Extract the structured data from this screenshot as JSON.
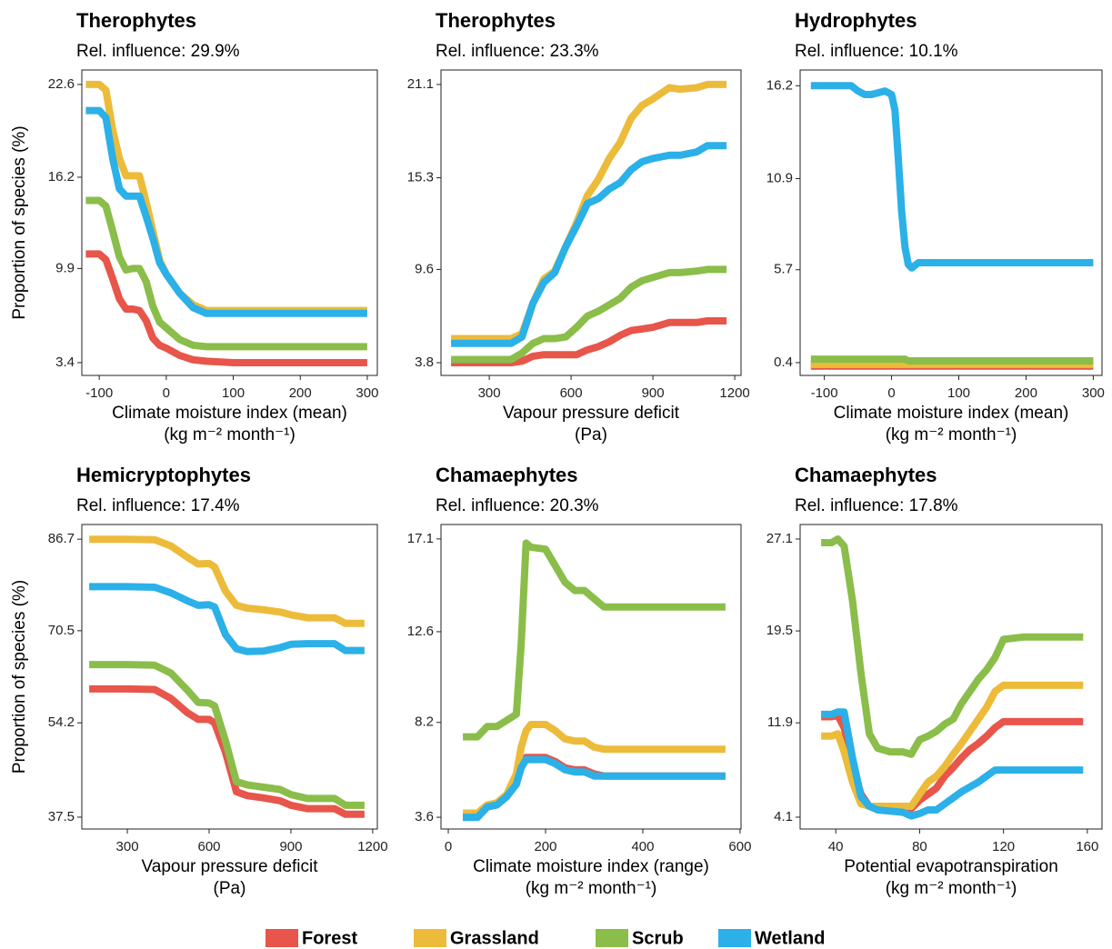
{
  "chart_data": [
    {
      "type": "line",
      "title": "Therophytes",
      "subtitle": "Rel. influence: 29.9%",
      "ylabel": "Proportion of species (%)",
      "xlabel": [
        "Climate moisture index (mean)",
        "(kg m⁻² month⁻¹)"
      ],
      "xlim": [
        -126,
        315
      ],
      "xticks": [
        -100,
        0,
        100,
        200,
        300
      ],
      "ylim": [
        2.52,
        23.6
      ],
      "yticks": [
        3.4,
        9.9,
        16.2,
        22.6
      ],
      "x": [
        -120,
        -100,
        -90,
        -80,
        -70,
        -60,
        -50,
        -40,
        -30,
        -20,
        -10,
        0,
        20,
        40,
        60,
        100,
        200,
        300
      ],
      "series": [
        {
          "name": "Forest",
          "color": "#e8554a",
          "values": [
            10.9,
            10.9,
            10.5,
            9.2,
            7.8,
            7.1,
            7.1,
            7.0,
            6.3,
            5.1,
            4.6,
            4.4,
            3.9,
            3.6,
            3.5,
            3.4,
            3.4,
            3.4
          ]
        },
        {
          "name": "Grassland",
          "color": "#ecbb3a",
          "values": [
            22.6,
            22.6,
            22.2,
            19.5,
            17.5,
            16.3,
            16.3,
            16.3,
            14.5,
            12.5,
            10.5,
            9.5,
            8.2,
            7.4,
            7.0,
            7.0,
            7.0,
            7.0
          ]
        },
        {
          "name": "Scrub",
          "color": "#8bbd4a",
          "values": [
            14.6,
            14.6,
            14.2,
            12.5,
            10.7,
            9.8,
            9.9,
            9.9,
            9.0,
            7.3,
            6.2,
            5.8,
            5.0,
            4.6,
            4.5,
            4.5,
            4.5,
            4.5
          ]
        },
        {
          "name": "Wetland",
          "color": "#2bb0e8",
          "values": [
            20.8,
            20.8,
            20.3,
            17.5,
            15.4,
            14.9,
            14.9,
            14.9,
            13.5,
            12.0,
            10.3,
            9.5,
            8.2,
            7.2,
            6.8,
            6.8,
            6.8,
            6.8
          ]
        }
      ]
    },
    {
      "type": "line",
      "title": "Therophytes",
      "subtitle": "Rel. influence: 23.3%",
      "xlabel": [
        "Vapour pressure deficit",
        "(Pa)"
      ],
      "xlim": [
        123,
        1223
      ],
      "xticks": [
        300,
        600,
        900,
        1200
      ],
      "ylim": [
        3.01,
        22.0
      ],
      "yticks": [
        3.8,
        9.6,
        15.3,
        21.1
      ],
      "x": [
        160,
        300,
        380,
        420,
        460,
        500,
        540,
        580,
        620,
        660,
        700,
        740,
        780,
        820,
        860,
        900,
        960,
        1000,
        1060,
        1100,
        1170
      ],
      "series": [
        {
          "name": "Forest",
          "color": "#e8554a",
          "values": [
            3.8,
            3.8,
            3.8,
            3.9,
            4.2,
            4.3,
            4.3,
            4.3,
            4.3,
            4.6,
            4.8,
            5.1,
            5.5,
            5.8,
            5.9,
            6.0,
            6.3,
            6.3,
            6.3,
            6.4,
            6.4
          ]
        },
        {
          "name": "Grassland",
          "color": "#ecbb3a",
          "values": [
            5.3,
            5.3,
            5.3,
            5.6,
            7.5,
            9.0,
            9.5,
            11.0,
            12.5,
            14.2,
            15.2,
            16.5,
            17.5,
            19.0,
            19.8,
            20.2,
            20.9,
            20.8,
            20.9,
            21.1,
            21.1
          ]
        },
        {
          "name": "Scrub",
          "color": "#8bbd4a",
          "values": [
            4.0,
            4.0,
            4.0,
            4.4,
            5.0,
            5.3,
            5.3,
            5.4,
            6.0,
            6.7,
            7.0,
            7.4,
            7.8,
            8.5,
            8.9,
            9.1,
            9.4,
            9.4,
            9.5,
            9.6,
            9.6
          ]
        },
        {
          "name": "Wetland",
          "color": "#2bb0e8",
          "values": [
            5.0,
            5.0,
            5.0,
            5.4,
            7.5,
            8.8,
            9.4,
            11.0,
            12.3,
            13.7,
            14.0,
            14.6,
            15.0,
            15.8,
            16.3,
            16.5,
            16.7,
            16.7,
            16.9,
            17.3,
            17.3
          ]
        }
      ]
    },
    {
      "type": "line",
      "title": "Hydrophytes",
      "subtitle": "Rel. influence: 10.1%",
      "xlabel": [
        "Climate moisture index (mean)",
        "(kg m⁻² month⁻¹)"
      ],
      "xlim": [
        -136,
        313
      ],
      "xticks": [
        -100,
        0,
        100,
        200,
        300
      ],
      "ylim": [
        -0.33,
        17.1
      ],
      "yticks": [
        0.4,
        5.7,
        10.9,
        16.2
      ],
      "x": [
        -120,
        -60,
        -50,
        -40,
        -30,
        -20,
        -10,
        0,
        5,
        10,
        15,
        20,
        25,
        30,
        40,
        100,
        200,
        300
      ],
      "series": [
        {
          "name": "Forest",
          "color": "#e8554a",
          "values": [
            0.2,
            0.2,
            0.2,
            0.2,
            0.2,
            0.2,
            0.2,
            0.2,
            0.2,
            0.2,
            0.2,
            0.2,
            0.2,
            0.2,
            0.2,
            0.2,
            0.2,
            0.2
          ]
        },
        {
          "name": "Grassland",
          "color": "#ecbb3a",
          "values": [
            0.3,
            0.3,
            0.3,
            0.3,
            0.3,
            0.3,
            0.3,
            0.3,
            0.3,
            0.3,
            0.3,
            0.3,
            0.3,
            0.3,
            0.3,
            0.3,
            0.3,
            0.3
          ]
        },
        {
          "name": "Scrub",
          "color": "#8bbd4a",
          "values": [
            0.6,
            0.6,
            0.6,
            0.6,
            0.6,
            0.6,
            0.6,
            0.6,
            0.6,
            0.6,
            0.6,
            0.6,
            0.5,
            0.5,
            0.5,
            0.5,
            0.5,
            0.5
          ]
        },
        {
          "name": "Wetland",
          "color": "#2bb0e8",
          "values": [
            16.2,
            16.2,
            15.9,
            15.7,
            15.7,
            15.8,
            15.9,
            15.7,
            14.8,
            12.0,
            9.0,
            7.0,
            6.0,
            5.8,
            6.1,
            6.1,
            6.1,
            6.1
          ]
        }
      ]
    },
    {
      "type": "line",
      "title": "Hemicryptophytes",
      "subtitle": "Rel. influence: 17.4%",
      "ylabel": "Proportion of species (%)",
      "xlabel": [
        "Vapour pressure deficit",
        "(Pa)"
      ],
      "xlim": [
        133,
        1217
      ],
      "xticks": [
        300,
        600,
        900,
        1200
      ],
      "ylim": [
        35.4,
        89.3
      ],
      "yticks": [
        37.5,
        54.2,
        70.5,
        86.7
      ],
      "x": [
        160,
        300,
        400,
        460,
        520,
        560,
        600,
        620,
        660,
        700,
        740,
        800,
        860,
        900,
        960,
        1000,
        1060,
        1100,
        1170
      ],
      "series": [
        {
          "name": "Forest",
          "color": "#e8554a",
          "values": [
            60.2,
            60.2,
            60.1,
            58.5,
            56.0,
            54.8,
            54.8,
            54.2,
            49.0,
            42.0,
            41.3,
            40.9,
            40.4,
            39.6,
            39.0,
            39.0,
            39.0,
            38.0,
            38.0
          ]
        },
        {
          "name": "Grassland",
          "color": "#ecbb3a",
          "values": [
            86.7,
            86.7,
            86.6,
            85.5,
            83.5,
            82.3,
            82.4,
            81.8,
            77.5,
            75.0,
            74.5,
            74.2,
            73.8,
            73.3,
            72.8,
            72.8,
            72.8,
            71.8,
            71.8
          ]
        },
        {
          "name": "Scrub",
          "color": "#8bbd4a",
          "values": [
            64.5,
            64.5,
            64.4,
            63.0,
            60.0,
            57.8,
            57.7,
            57.2,
            51.0,
            43.8,
            43.2,
            42.8,
            42.4,
            41.5,
            40.8,
            40.8,
            40.8,
            39.6,
            39.6
          ]
        },
        {
          "name": "Wetland",
          "color": "#2bb0e8",
          "values": [
            78.3,
            78.3,
            78.2,
            77.2,
            75.8,
            75.0,
            75.1,
            74.7,
            69.8,
            67.3,
            66.8,
            66.9,
            67.5,
            68.1,
            68.2,
            68.2,
            68.2,
            67.0,
            67.0
          ]
        }
      ]
    },
    {
      "type": "line",
      "title": "Chamaephytes",
      "subtitle": "Rel. influence: 20.3%",
      "xlabel": [
        "Climate moisture index (range)",
        "(kg m⁻² month⁻¹)"
      ],
      "xlim": [
        -15,
        602
      ],
      "xticks": [
        0,
        200,
        400,
        600
      ],
      "ylim": [
        3.03,
        17.8
      ],
      "yticks": [
        3.6,
        8.2,
        12.6,
        17.1
      ],
      "x": [
        30,
        60,
        80,
        100,
        120,
        140,
        150,
        160,
        170,
        200,
        220,
        240,
        260,
        280,
        300,
        320,
        400,
        570
      ],
      "series": [
        {
          "name": "Forest",
          "color": "#e8554a",
          "values": [
            3.6,
            3.6,
            4.1,
            4.2,
            4.6,
            5.3,
            6.1,
            6.5,
            6.5,
            6.5,
            6.3,
            6.0,
            5.9,
            5.9,
            5.7,
            5.6,
            5.6,
            5.6
          ]
        },
        {
          "name": "Grassland",
          "color": "#ecbb3a",
          "values": [
            3.8,
            3.8,
            4.2,
            4.3,
            4.7,
            5.7,
            7.0,
            7.8,
            8.1,
            8.1,
            7.8,
            7.4,
            7.3,
            7.3,
            7.0,
            6.9,
            6.9,
            6.9
          ]
        },
        {
          "name": "Scrub",
          "color": "#8bbd4a",
          "values": [
            7.5,
            7.5,
            8.0,
            8.0,
            8.3,
            8.6,
            12.0,
            16.9,
            16.7,
            16.6,
            15.8,
            15.0,
            14.6,
            14.6,
            14.2,
            13.8,
            13.8,
            13.8
          ]
        },
        {
          "name": "Wetland",
          "color": "#2bb0e8",
          "values": [
            3.6,
            3.6,
            4.1,
            4.2,
            4.6,
            5.2,
            6.0,
            6.4,
            6.4,
            6.4,
            6.2,
            5.9,
            5.8,
            5.8,
            5.6,
            5.6,
            5.6,
            5.6
          ]
        }
      ]
    },
    {
      "type": "line",
      "title": "Chamaephytes",
      "subtitle": "Rel. influence: 17.8%",
      "xlabel": [
        "Potential evapotranspiration",
        "(kg m⁻² month⁻¹)"
      ],
      "xlim": [
        23,
        167
      ],
      "xticks": [
        40,
        80,
        120,
        160
      ],
      "ylim": [
        3.12,
        28.3
      ],
      "yticks": [
        4.1,
        11.9,
        19.5,
        27.1
      ],
      "x": [
        33,
        38,
        41,
        44,
        48,
        52,
        56,
        60,
        66,
        72,
        76,
        80,
        84,
        88,
        92,
        96,
        100,
        104,
        108,
        112,
        116,
        120,
        130,
        158
      ],
      "series": [
        {
          "name": "Forest",
          "color": "#e8554a",
          "values": [
            12.4,
            12.4,
            12.5,
            11.5,
            8.5,
            6.0,
            5.0,
            4.8,
            4.8,
            4.8,
            4.8,
            5.5,
            6.0,
            6.5,
            7.5,
            8.2,
            9.0,
            9.7,
            10.2,
            10.8,
            11.5,
            12.0,
            12.0,
            12.0
          ]
        },
        {
          "name": "Grassland",
          "color": "#ecbb3a",
          "values": [
            10.8,
            10.8,
            11.0,
            9.5,
            7.0,
            5.2,
            5.0,
            5.0,
            5.0,
            5.0,
            5.0,
            6.0,
            7.0,
            7.5,
            8.3,
            9.3,
            10.2,
            11.2,
            12.2,
            13.2,
            14.5,
            15.0,
            15.0,
            15.0
          ]
        },
        {
          "name": "Scrub",
          "color": "#8bbd4a",
          "values": [
            26.8,
            26.8,
            27.1,
            26.5,
            22.0,
            16.0,
            11.0,
            9.8,
            9.5,
            9.5,
            9.3,
            10.5,
            10.8,
            11.2,
            11.8,
            12.2,
            13.5,
            14.5,
            15.5,
            16.3,
            17.3,
            18.8,
            19.0,
            19.0
          ]
        },
        {
          "name": "Wetland",
          "color": "#2bb0e8",
          "values": [
            12.6,
            12.6,
            12.8,
            12.8,
            9.0,
            5.8,
            5.0,
            4.7,
            4.6,
            4.5,
            4.2,
            4.4,
            4.7,
            4.7,
            5.2,
            5.7,
            6.2,
            6.6,
            7.0,
            7.5,
            8.0,
            8.0,
            8.0,
            8.0
          ]
        }
      ]
    }
  ]
}
